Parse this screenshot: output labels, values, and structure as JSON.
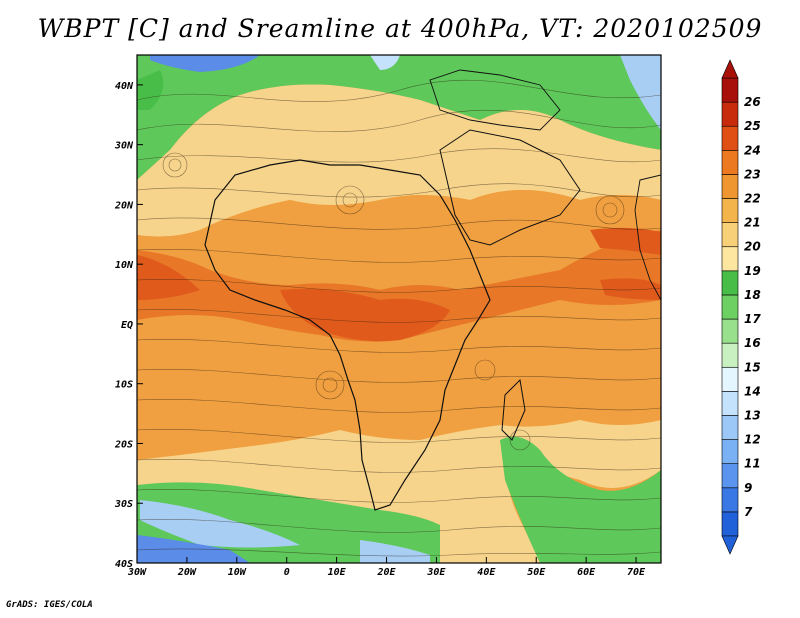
{
  "title": "WBPT [C] and Sreamline at 400hPa, VT: 2020102509",
  "credit": "GrADS: IGES/COLA",
  "map": {
    "lon_range": [
      -30,
      75
    ],
    "lat_range": [
      -40,
      45
    ],
    "x_ticks": [
      {
        "value": -30,
        "label": "30W"
      },
      {
        "value": -20,
        "label": "20W"
      },
      {
        "value": -10,
        "label": "10W"
      },
      {
        "value": 0,
        "label": "0"
      },
      {
        "value": 10,
        "label": "10E"
      },
      {
        "value": 20,
        "label": "20E"
      },
      {
        "value": 30,
        "label": "30E"
      },
      {
        "value": 40,
        "label": "40E"
      },
      {
        "value": 50,
        "label": "50E"
      },
      {
        "value": 60,
        "label": "60E"
      },
      {
        "value": 70,
        "label": "70E"
      }
    ],
    "y_ticks": [
      {
        "value": 40,
        "label": "40N"
      },
      {
        "value": 30,
        "label": "30N"
      },
      {
        "value": 20,
        "label": "20N"
      },
      {
        "value": 10,
        "label": "10N"
      },
      {
        "value": 0,
        "label": "EQ"
      },
      {
        "value": -10,
        "label": "10S"
      },
      {
        "value": -20,
        "label": "20S"
      },
      {
        "value": -30,
        "label": "30S"
      },
      {
        "value": -40,
        "label": "40S"
      }
    ]
  },
  "colorbar": {
    "levels": [
      "7",
      "9",
      "11",
      "12",
      "13",
      "14",
      "15",
      "16",
      "17",
      "18",
      "19",
      "20",
      "21",
      "22",
      "23",
      "24",
      "25",
      "26"
    ],
    "colors": [
      "#2060d8",
      "#3a78e6",
      "#5a94ee",
      "#7ab0f4",
      "#9cc8f8",
      "#c4e2fc",
      "#e4f6ff",
      "#c8f0c0",
      "#98e08c",
      "#6cd062",
      "#48be48",
      "#fce6a0",
      "#f8d078",
      "#f4b44c",
      "#f09630",
      "#ec7820",
      "#e05014",
      "#c82a0c",
      "#a8100a"
    ]
  },
  "field_colors": {
    "north_green": "#5ec85a",
    "tan": "#f6d48c",
    "orange": "#f0a040",
    "deep_orange": "#e87828",
    "red_orange": "#e05a1c",
    "south_green": "#5ec85a",
    "light_blue": "#a8cef4",
    "blue": "#5a8ce8"
  }
}
